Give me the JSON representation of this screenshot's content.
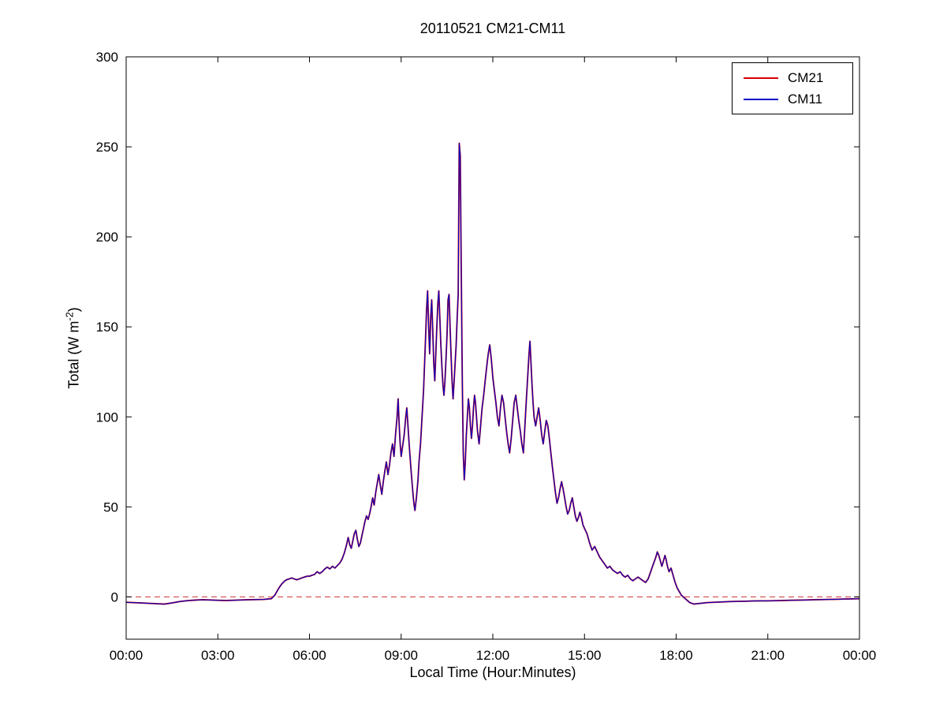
{
  "chart_data": {
    "type": "line",
    "title": "20110521 CM21-CM11",
    "xlabel": "Local Time (Hour:Minutes)",
    "ylabel": "Total (W m-2)",
    "ylabel_parts": {
      "main": "Total (W m",
      "sup": "-2",
      "close": ")"
    },
    "xlim_minutes": [
      0,
      1440
    ],
    "ylim": [
      -23.5,
      300
    ],
    "yticks": [
      0,
      50,
      100,
      150,
      200,
      250,
      300
    ],
    "xticks_minutes": [
      0,
      180,
      360,
      540,
      720,
      900,
      1080,
      1260,
      1440
    ],
    "xtick_labels": [
      "00:00",
      "03:00",
      "06:00",
      "09:00",
      "12:00",
      "15:00",
      "18:00",
      "21:00",
      "00:00"
    ],
    "grid": false,
    "legend_position": "top-right",
    "zero_line": {
      "y": 0,
      "color": "#cc3333",
      "style": "dashed"
    },
    "series": [
      {
        "name": "CM21",
        "color": "#d40000"
      },
      {
        "name": "CM11",
        "color": "#0000c8"
      }
    ],
    "series_note": "CM21 and CM11 overlap almost everywhere; shared sampled points below as [minutes_from_midnight, W_m-2]",
    "points_minutes_values": [
      [
        0,
        -3
      ],
      [
        15,
        -3.2
      ],
      [
        30,
        -3.4
      ],
      [
        45,
        -3.6
      ],
      [
        60,
        -3.8
      ],
      [
        75,
        -4
      ],
      [
        90,
        -3.4
      ],
      [
        105,
        -2.6
      ],
      [
        120,
        -2.1
      ],
      [
        135,
        -1.8
      ],
      [
        150,
        -1.6
      ],
      [
        165,
        -1.7
      ],
      [
        180,
        -1.9
      ],
      [
        195,
        -2
      ],
      [
        210,
        -1.9
      ],
      [
        225,
        -1.7
      ],
      [
        240,
        -1.6
      ],
      [
        255,
        -1.5
      ],
      [
        270,
        -1.4
      ],
      [
        285,
        -1
      ],
      [
        292,
        1
      ],
      [
        296,
        3
      ],
      [
        300,
        5
      ],
      [
        305,
        7
      ],
      [
        310,
        8.5
      ],
      [
        315,
        9.5
      ],
      [
        320,
        10
      ],
      [
        325,
        10.5
      ],
      [
        330,
        10
      ],
      [
        335,
        9.5
      ],
      [
        340,
        10
      ],
      [
        345,
        10.5
      ],
      [
        350,
        11
      ],
      [
        355,
        11.5
      ],
      [
        360,
        11.5
      ],
      [
        365,
        12
      ],
      [
        370,
        12.5
      ],
      [
        375,
        14
      ],
      [
        380,
        13
      ],
      [
        385,
        14
      ],
      [
        390,
        15.5
      ],
      [
        395,
        16.5
      ],
      [
        400,
        15.5
      ],
      [
        405,
        17
      ],
      [
        410,
        16
      ],
      [
        415,
        17.5
      ],
      [
        420,
        19
      ],
      [
        424,
        21
      ],
      [
        428,
        24
      ],
      [
        432,
        28
      ],
      [
        436,
        33
      ],
      [
        439,
        29
      ],
      [
        442,
        27
      ],
      [
        445,
        31
      ],
      [
        448,
        35
      ],
      [
        451,
        37
      ],
      [
        454,
        32
      ],
      [
        457,
        28
      ],
      [
        460,
        30
      ],
      [
        463,
        34
      ],
      [
        466,
        38
      ],
      [
        469,
        42
      ],
      [
        472,
        45
      ],
      [
        475,
        43
      ],
      [
        478,
        46
      ],
      [
        481,
        50
      ],
      [
        484,
        55
      ],
      [
        487,
        51
      ],
      [
        490,
        58
      ],
      [
        493,
        63
      ],
      [
        496,
        68
      ],
      [
        499,
        62
      ],
      [
        502,
        57
      ],
      [
        505,
        64
      ],
      [
        508,
        70
      ],
      [
        511,
        75
      ],
      [
        514,
        68
      ],
      [
        517,
        73
      ],
      [
        520,
        80
      ],
      [
        523,
        85
      ],
      [
        526,
        78
      ],
      [
        529,
        90
      ],
      [
        532,
        100
      ],
      [
        534,
        110
      ],
      [
        536,
        96
      ],
      [
        538,
        85
      ],
      [
        540,
        78
      ],
      [
        543,
        84
      ],
      [
        546,
        90
      ],
      [
        549,
        100
      ],
      [
        551,
        105
      ],
      [
        553,
        97
      ],
      [
        555,
        88
      ],
      [
        557,
        80
      ],
      [
        559,
        72
      ],
      [
        561,
        65
      ],
      [
        563,
        58
      ],
      [
        565,
        52
      ],
      [
        567,
        48
      ],
      [
        570,
        55
      ],
      [
        573,
        65
      ],
      [
        575,
        75
      ],
      [
        578,
        85
      ],
      [
        580,
        95
      ],
      [
        582,
        105
      ],
      [
        584,
        115
      ],
      [
        586,
        130
      ],
      [
        588,
        145
      ],
      [
        590,
        160
      ],
      [
        592,
        170
      ],
      [
        594,
        150
      ],
      [
        596,
        135
      ],
      [
        598,
        155
      ],
      [
        600,
        165
      ],
      [
        602,
        148
      ],
      [
        604,
        130
      ],
      [
        606,
        120
      ],
      [
        608,
        135
      ],
      [
        610,
        150
      ],
      [
        612,
        163
      ],
      [
        614,
        170
      ],
      [
        616,
        155
      ],
      [
        618,
        140
      ],
      [
        620,
        128
      ],
      [
        622,
        118
      ],
      [
        624,
        112
      ],
      [
        626,
        120
      ],
      [
        628,
        132
      ],
      [
        630,
        145
      ],
      [
        632,
        165
      ],
      [
        634,
        168
      ],
      [
        636,
        150
      ],
      [
        638,
        135
      ],
      [
        640,
        120
      ],
      [
        642,
        110
      ],
      [
        645,
        125
      ],
      [
        648,
        140
      ],
      [
        650,
        155
      ],
      [
        652,
        168
      ],
      [
        654,
        252
      ],
      [
        656,
        245
      ],
      [
        658,
        180
      ],
      [
        660,
        120
      ],
      [
        662,
        80
      ],
      [
        664,
        65
      ],
      [
        666,
        75
      ],
      [
        668,
        90
      ],
      [
        670,
        100
      ],
      [
        672,
        110
      ],
      [
        674,
        105
      ],
      [
        676,
        95
      ],
      [
        678,
        88
      ],
      [
        680,
        95
      ],
      [
        682,
        105
      ],
      [
        684,
        112
      ],
      [
        686,
        108
      ],
      [
        688,
        100
      ],
      [
        690,
        92
      ],
      [
        693,
        85
      ],
      [
        696,
        95
      ],
      [
        699,
        105
      ],
      [
        702,
        112
      ],
      [
        705,
        120
      ],
      [
        708,
        128
      ],
      [
        711,
        135
      ],
      [
        714,
        140
      ],
      [
        717,
        132
      ],
      [
        720,
        122
      ],
      [
        723,
        115
      ],
      [
        726,
        108
      ],
      [
        729,
        100
      ],
      [
        732,
        95
      ],
      [
        735,
        105
      ],
      [
        738,
        112
      ],
      [
        741,
        108
      ],
      [
        744,
        100
      ],
      [
        747,
        92
      ],
      [
        750,
        85
      ],
      [
        753,
        80
      ],
      [
        756,
        88
      ],
      [
        759,
        98
      ],
      [
        762,
        108
      ],
      [
        765,
        112
      ],
      [
        768,
        105
      ],
      [
        771,
        98
      ],
      [
        774,
        92
      ],
      [
        777,
        85
      ],
      [
        780,
        80
      ],
      [
        783,
        95
      ],
      [
        786,
        110
      ],
      [
        789,
        125
      ],
      [
        791,
        135
      ],
      [
        793,
        142
      ],
      [
        795,
        130
      ],
      [
        797,
        118
      ],
      [
        799,
        108
      ],
      [
        801,
        100
      ],
      [
        804,
        95
      ],
      [
        807,
        100
      ],
      [
        810,
        105
      ],
      [
        813,
        98
      ],
      [
        816,
        90
      ],
      [
        819,
        85
      ],
      [
        822,
        92
      ],
      [
        825,
        98
      ],
      [
        828,
        95
      ],
      [
        831,
        88
      ],
      [
        834,
        80
      ],
      [
        837,
        72
      ],
      [
        840,
        65
      ],
      [
        843,
        58
      ],
      [
        846,
        52
      ],
      [
        849,
        55
      ],
      [
        852,
        60
      ],
      [
        855,
        64
      ],
      [
        858,
        60
      ],
      [
        861,
        55
      ],
      [
        864,
        50
      ],
      [
        867,
        46
      ],
      [
        870,
        48
      ],
      [
        873,
        52
      ],
      [
        876,
        55
      ],
      [
        879,
        50
      ],
      [
        882,
        45
      ],
      [
        885,
        42
      ],
      [
        888,
        44
      ],
      [
        891,
        47
      ],
      [
        894,
        44
      ],
      [
        897,
        40
      ],
      [
        900,
        38
      ],
      [
        905,
        35
      ],
      [
        910,
        30
      ],
      [
        915,
        26
      ],
      [
        920,
        28
      ],
      [
        925,
        25
      ],
      [
        930,
        22
      ],
      [
        935,
        20
      ],
      [
        940,
        18
      ],
      [
        945,
        16
      ],
      [
        950,
        17
      ],
      [
        955,
        15
      ],
      [
        960,
        14
      ],
      [
        965,
        13
      ],
      [
        970,
        14
      ],
      [
        975,
        12
      ],
      [
        980,
        11
      ],
      [
        985,
        12
      ],
      [
        990,
        10
      ],
      [
        995,
        9
      ],
      [
        1000,
        10
      ],
      [
        1005,
        11
      ],
      [
        1010,
        10
      ],
      [
        1015,
        9
      ],
      [
        1020,
        8
      ],
      [
        1025,
        10
      ],
      [
        1030,
        14
      ],
      [
        1035,
        18
      ],
      [
        1040,
        22
      ],
      [
        1043,
        25
      ],
      [
        1046,
        23
      ],
      [
        1049,
        20
      ],
      [
        1052,
        17
      ],
      [
        1055,
        20
      ],
      [
        1058,
        23
      ],
      [
        1060,
        21
      ],
      [
        1063,
        17
      ],
      [
        1066,
        14
      ],
      [
        1070,
        16
      ],
      [
        1074,
        12
      ],
      [
        1078,
        8
      ],
      [
        1082,
        5
      ],
      [
        1086,
        3
      ],
      [
        1090,
        1
      ],
      [
        1094,
        0
      ],
      [
        1098,
        -1
      ],
      [
        1102,
        -2
      ],
      [
        1106,
        -3
      ],
      [
        1110,
        -3.5
      ],
      [
        1115,
        -4
      ],
      [
        1120,
        -3.8
      ],
      [
        1130,
        -3.5
      ],
      [
        1140,
        -3.2
      ],
      [
        1155,
        -3
      ],
      [
        1170,
        -2.8
      ],
      [
        1185,
        -2.6
      ],
      [
        1200,
        -2.5
      ],
      [
        1215,
        -2.4
      ],
      [
        1230,
        -2.3
      ],
      [
        1245,
        -2.2
      ],
      [
        1260,
        -2.2
      ],
      [
        1275,
        -2.1
      ],
      [
        1290,
        -2
      ],
      [
        1305,
        -1.9
      ],
      [
        1320,
        -1.8
      ],
      [
        1335,
        -1.7
      ],
      [
        1350,
        -1.6
      ],
      [
        1365,
        -1.5
      ],
      [
        1380,
        -1.4
      ],
      [
        1395,
        -1.3
      ],
      [
        1410,
        -1.2
      ],
      [
        1425,
        -1.1
      ],
      [
        1440,
        -1
      ]
    ]
  }
}
